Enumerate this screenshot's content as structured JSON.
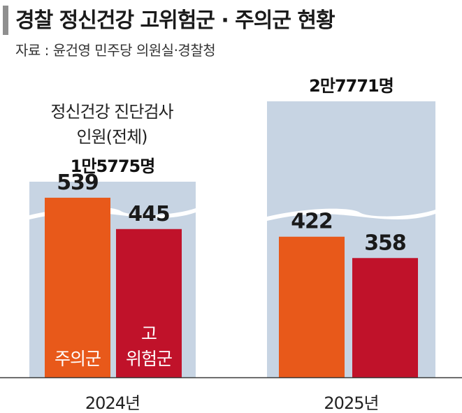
{
  "title": "경찰 정신건강 고위험군 · 주의군 현황",
  "source": "자료 : 윤건영 민주당 의원실·경찰청",
  "colors": {
    "total_fill": "#c7d4e3",
    "caution": "#e8591a",
    "high_risk": "#c0122a",
    "axis": "#3a3a3a"
  },
  "chart_data": {
    "type": "bar",
    "categories": [
      "2024년",
      "2025년"
    ],
    "total_description": [
      "정신건강 진단검사",
      "인원(전체)"
    ],
    "totals": {
      "values": [
        15775,
        27771
      ],
      "labels": [
        "1만5775명",
        "2만7771명"
      ],
      "axis_break": true
    },
    "series": [
      {
        "name": "주의군",
        "values": [
          539,
          422
        ],
        "color": "#e8591a"
      },
      {
        "name": "고 위험군",
        "name_lines": [
          "고",
          "위험군"
        ],
        "values": [
          445,
          358
        ],
        "color": "#c0122a"
      }
    ],
    "ylim_lower": [
      0,
      650
    ]
  }
}
